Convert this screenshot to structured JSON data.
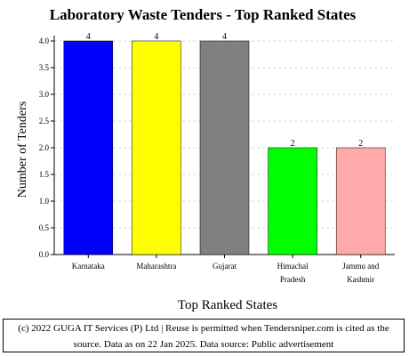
{
  "chart_data": {
    "type": "bar",
    "title": "Laboratory Waste Tenders - Top Ranked States",
    "xlabel": "Top Ranked States",
    "ylabel": "Number of Tenders",
    "categories": [
      [
        "Karnataka"
      ],
      [
        "Maharashtra"
      ],
      [
        "Gujarat"
      ],
      [
        "Himachal",
        "Pradesh"
      ],
      [
        "Jammu and",
        "Kashmir"
      ]
    ],
    "values": [
      4,
      4,
      4,
      2,
      2
    ],
    "value_labels": [
      "4",
      "4",
      "4",
      "2",
      "2"
    ],
    "bar_colors": [
      "#0000ff",
      "#ffff00",
      "#808080",
      "#00ff00",
      "#ffaaaa"
    ],
    "ylim": [
      0,
      4.0
    ],
    "yticks": [
      0.0,
      0.5,
      1.0,
      1.5,
      2.0,
      2.5,
      3.0,
      3.5,
      4.0
    ],
    "ytick_labels": [
      "0.0",
      "0.5",
      "1.0",
      "1.5",
      "2.0",
      "2.5",
      "3.0",
      "3.5",
      "4.0"
    ],
    "grid": true
  },
  "footer": {
    "line1": "(c) 2022 GUGA IT Services (P) Ltd | Reuse is permitted when Tendersniper.com is cited as the",
    "line2": "source. Data as on 22 Jan 2025. Data source: Public advertisement"
  }
}
